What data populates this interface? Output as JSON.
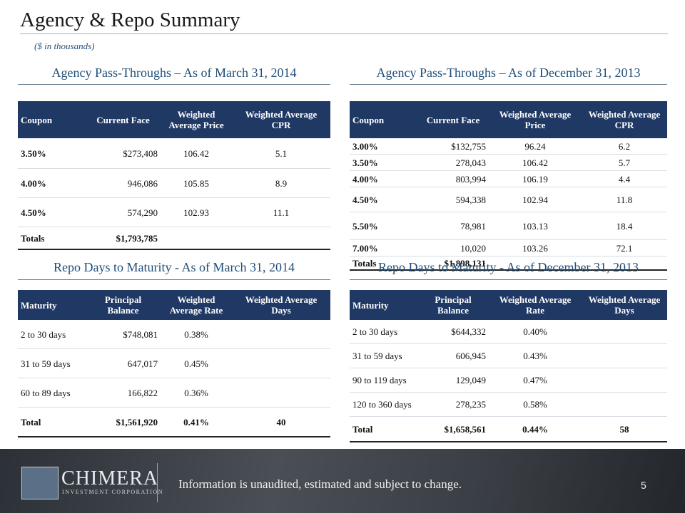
{
  "title": "Agency & Repo Summary",
  "subtitle": "($ in thousands)",
  "tables": [
    {
      "title": "Agency Pass-Throughs – As of March 31, 2014",
      "headers": [
        "Coupon",
        "Current Face",
        "Weighted Average Price",
        "Weighted Average CPR"
      ],
      "rows": [
        [
          "3.50%",
          "$273,408",
          "106.42",
          "5.1"
        ],
        [
          "4.00%",
          "946,086",
          "105.85",
          "8.9"
        ],
        [
          "4.50%",
          "574,290",
          "102.93",
          "11.1"
        ]
      ],
      "total": [
        "Totals",
        "$1,793,785"
      ]
    },
    {
      "title": "Agency Pass-Throughs – As of December 31, 2013",
      "headers": [
        "Coupon",
        "Current Face",
        "Weighted Average Price",
        "Weighted Average CPR"
      ],
      "rows": [
        [
          "3.00%",
          "$132,755",
          "96.24",
          "6.2"
        ],
        [
          "3.50%",
          "278,043",
          "106.42",
          "5.7"
        ],
        [
          "4.00%",
          "803,994",
          "106.19",
          "4.4"
        ],
        [
          "4.50%",
          "594,338",
          "102.94",
          "11.8"
        ],
        [
          "5.50%",
          "78,981",
          "103.13",
          "18.4"
        ],
        [
          "7.00%",
          "10,020",
          "103.26",
          "72.1"
        ]
      ],
      "total": [
        "Totals",
        "$1,898,131"
      ]
    },
    {
      "title": "Repo Days to Maturity - As of March 31, 2014",
      "headers": [
        "Maturity",
        "Principal Balance",
        "Weighted Average Rate",
        "Weighted Average Days"
      ],
      "rows": [
        [
          "2 to 30 days",
          "$748,081",
          "0.38%"
        ],
        [
          "31 to 59 days",
          "647,017",
          "0.45%"
        ],
        [
          "60 to 89 days",
          "166,822",
          "0.36%"
        ]
      ],
      "total": [
        "Total",
        "$1,561,920",
        "0.41%",
        "40"
      ]
    },
    {
      "title": "Repo Days to Maturity - As of December 31, 2013",
      "headers": [
        "Maturity",
        "Principal Balance",
        "Weighted Average Rate",
        "Weighted Average Days"
      ],
      "rows": [
        [
          "2 to 30 days",
          "$644,332",
          "0.40%"
        ],
        [
          "31 to 59 days",
          "606,945",
          "0.43%"
        ],
        [
          "90 to 119 days",
          "129,049",
          "0.47%"
        ],
        [
          "120 to 360 days",
          "278,235",
          "0.58%"
        ]
      ],
      "total": [
        "Total",
        "$1,658,561",
        "0.44%",
        "58"
      ]
    }
  ],
  "footer": {
    "logo": "CHIMERA",
    "logo_sub": "INVESTMENT CORPORATION",
    "note": "Information is unaudited, estimated and subject to change.",
    "page": "5"
  }
}
